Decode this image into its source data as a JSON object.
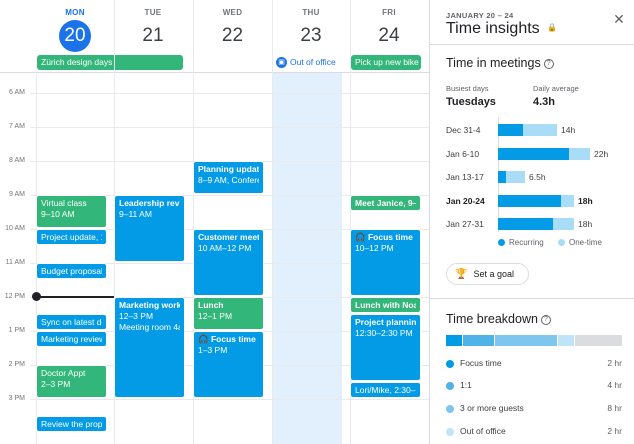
{
  "calendar": {
    "days": [
      {
        "name": "MON",
        "num": "20",
        "today": true
      },
      {
        "name": "TUE",
        "num": "21",
        "today": false
      },
      {
        "name": "WED",
        "num": "22",
        "today": false
      },
      {
        "name": "THU",
        "num": "23",
        "today": false
      },
      {
        "name": "FRI",
        "num": "24",
        "today": false
      }
    ],
    "all_day": {
      "zurich": "Zürich design days",
      "out_of_office": "Out of office",
      "pickup": "Pick up new bike"
    },
    "hours": [
      "6 AM",
      "7 AM",
      "8 AM",
      "9 AM",
      "10 AM",
      "11 AM",
      "12 PM",
      "1 PM",
      "2 PM",
      "3 PM"
    ],
    "events": {
      "virtual_class": {
        "title": "Virtual class",
        "time": "9–10 AM"
      },
      "project_update": {
        "title": "Project update, 1"
      },
      "budget_proposal": {
        "title": "Budget proposal"
      },
      "sync": {
        "title": "Sync on latest de"
      },
      "marketing_review": {
        "title": "Marketing review"
      },
      "doctor": {
        "title": "Doctor Appt",
        "time": "2–3 PM"
      },
      "review_proposal": {
        "title": "Review the propo"
      },
      "leadership": {
        "title": "Leadership revie",
        "time": "9–11 AM"
      },
      "marketing_workshop": {
        "title": "Marketing works",
        "time": "12–3 PM",
        "place": "Meeting room 4a"
      },
      "planning_update": {
        "title": "Planning update",
        "time": "8–9 AM, Confere"
      },
      "customer_meeting": {
        "title": "Customer meetin",
        "time": "10 AM–12 PM"
      },
      "lunch_wed": {
        "title": "Lunch",
        "time": "12–1 PM"
      },
      "focus_wed": {
        "title": "Focus time",
        "time": "1–3 PM"
      },
      "meet_janice": {
        "title": "Meet Janice, 9–"
      },
      "focus_fri": {
        "title": "Focus time",
        "time": "10–12 PM"
      },
      "lunch_noah": {
        "title": "Lunch with Noah"
      },
      "project_planning": {
        "title": "Project planning",
        "time": "12:30–2:30 PM"
      },
      "lori_mike": {
        "title": "Lori/Mike, 2:30–"
      }
    }
  },
  "insights": {
    "date_range": "JANUARY 20 – 24",
    "title": "Time insights",
    "meetings": {
      "section_title": "Time in meetings",
      "busiest_label": "Busiest days",
      "busiest_value": "Tuesdays",
      "average_label": "Daily average",
      "average_value": "4.3h",
      "weeks": [
        {
          "label": "Dec 31-4",
          "recurring": 6,
          "one_time": 8,
          "total": "14h",
          "bold": false
        },
        {
          "label": "Jan 6-10",
          "recurring": 17,
          "one_time": 5,
          "total": "22h",
          "bold": false
        },
        {
          "label": "Jan 13-17",
          "recurring": 2,
          "one_time": 4.5,
          "total": "6.5h",
          "bold": false
        },
        {
          "label": "Jan 20-24",
          "recurring": 15,
          "one_time": 3,
          "total": "18h",
          "bold": true
        },
        {
          "label": "Jan 27-31",
          "recurring": 13,
          "one_time": 5,
          "total": "18h",
          "bold": false
        }
      ],
      "legend_recurring": "Recurring",
      "legend_one_time": "One-time"
    },
    "goal_button": "Set a goal",
    "breakdown": {
      "section_title": "Time breakdown",
      "items": [
        {
          "label": "Focus time",
          "value": "2 hr",
          "color": "#039be5",
          "hours": 2
        },
        {
          "label": "1:1",
          "value": "4 hr",
          "color": "#4fb3e8",
          "hours": 4
        },
        {
          "label": "3 or more guests",
          "value": "8 hr",
          "color": "#7ec6ee",
          "hours": 8
        },
        {
          "label": "Out of office",
          "value": "2 hr",
          "color": "#bfe3f8",
          "hours": 2
        }
      ]
    },
    "colors": {
      "recurring": "#039be5",
      "one_time": "#a8dcf7",
      "accent": "#1a73e8"
    }
  }
}
